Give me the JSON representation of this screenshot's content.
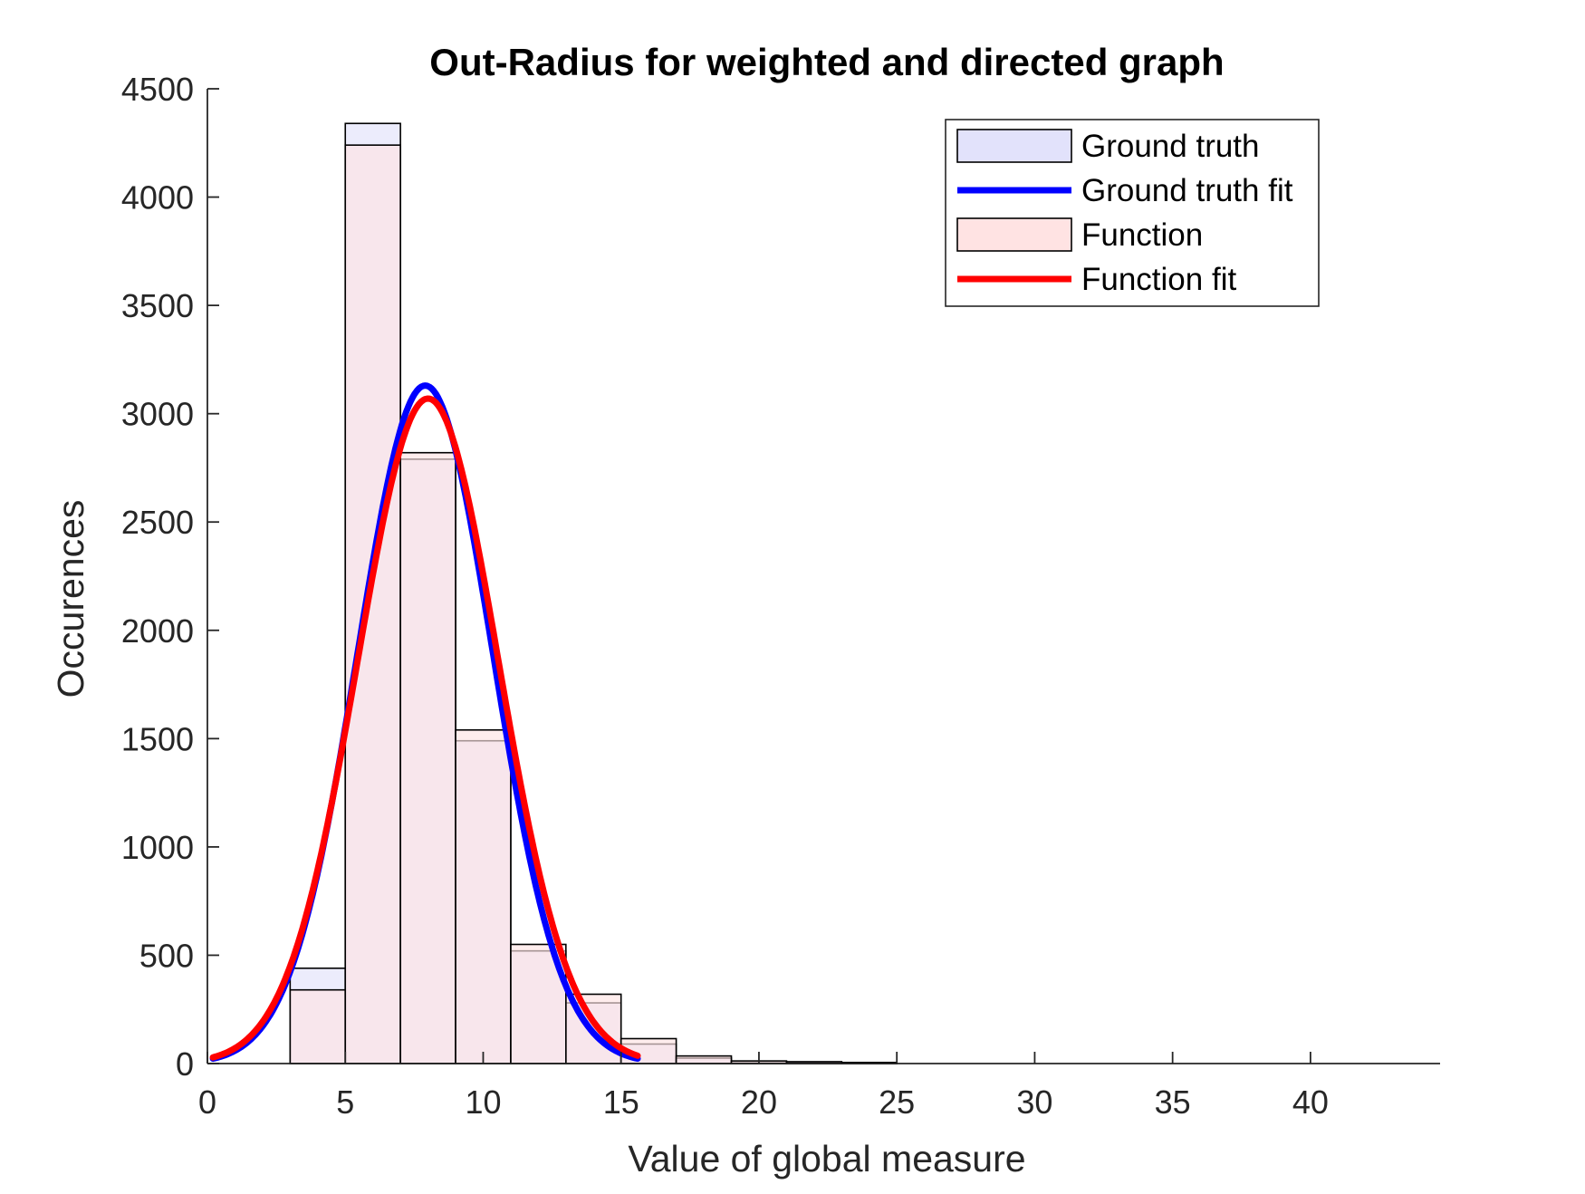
{
  "chart_data": {
    "type": "bar",
    "title": "Out-Radius for weighted and directed graph",
    "xlabel": "Value of global measure",
    "ylabel": "Occurences",
    "xlim": [
      0,
      44.7
    ],
    "ylim": [
      0,
      4500
    ],
    "x_ticks": [
      0,
      5,
      10,
      15,
      20,
      25,
      30,
      35,
      40
    ],
    "y_ticks": [
      0,
      500,
      1000,
      1500,
      2000,
      2500,
      3000,
      3500,
      4000,
      4500
    ],
    "x_tick_labels": [
      "0",
      "5",
      "10",
      "15",
      "20",
      "25",
      "30",
      "35",
      "40"
    ],
    "y_tick_labels": [
      "0",
      "500",
      "1000",
      "1500",
      "2000",
      "2500",
      "3000",
      "3500",
      "4000",
      "4500"
    ],
    "bin_edges": [
      3,
      5,
      7,
      9,
      11,
      13,
      15,
      17,
      19,
      21,
      23,
      25,
      27,
      29,
      31,
      33,
      35,
      37,
      39,
      41,
      43
    ],
    "grid": false,
    "legend_position": "top-right",
    "series": [
      {
        "name": "Ground truth",
        "kind": "histogram",
        "color": "#e2e2fb",
        "values": [
          440,
          4340,
          2790,
          1490,
          520,
          280,
          90,
          25,
          10,
          8,
          5,
          0,
          0,
          0,
          0,
          0,
          0,
          0,
          0,
          0
        ]
      },
      {
        "name": "Ground truth fit",
        "kind": "line",
        "color": "#0000ff",
        "fit": {
          "amplitude": 3130,
          "mean": 7.9,
          "sigma": 2.45,
          "x_range": [
            0.2,
            15.6
          ]
        }
      },
      {
        "name": "Function",
        "kind": "histogram",
        "color": "#ffe3e3",
        "values": [
          340,
          4240,
          2820,
          1540,
          550,
          320,
          115,
          35,
          12,
          8,
          5,
          0,
          0,
          0,
          0,
          0,
          0,
          0,
          0,
          0
        ]
      },
      {
        "name": "Function fit",
        "kind": "line",
        "color": "#ff0000",
        "fit": {
          "amplitude": 3070,
          "mean": 8.0,
          "sigma": 2.55,
          "x_range": [
            0.2,
            15.6
          ]
        }
      }
    ]
  }
}
